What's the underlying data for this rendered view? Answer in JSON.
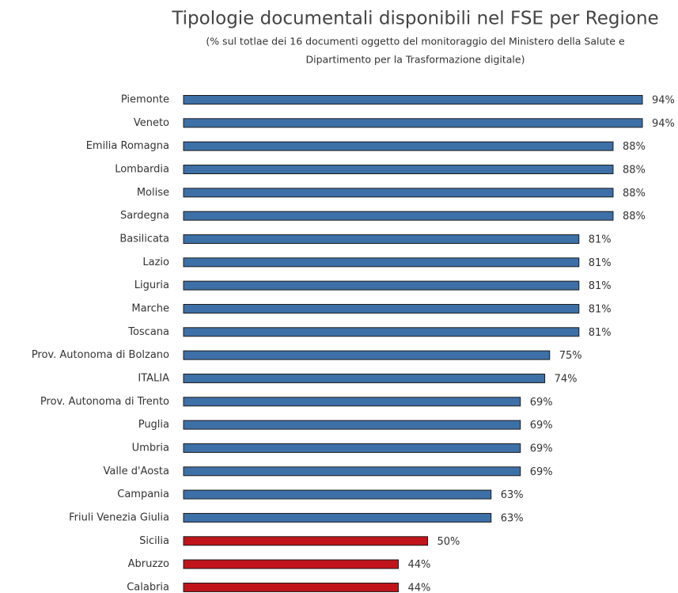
{
  "chart_data": {
    "type": "bar",
    "orientation": "horizontal",
    "title": "Tipologie documentali disponibili nel FSE per Regione",
    "subtitle": [
      "(% sul totlae dei 16 documenti oggetto del monitoraggio del Ministero della Salute e",
      "Dipartimento per la Trasformazione digitale)"
    ],
    "categories": [
      "Piemonte",
      "Veneto",
      "Emilia Romagna",
      "Lombardia",
      "Molise",
      "Sardegna",
      "Basilicata",
      "Lazio",
      "Liguria",
      "Marche",
      "Toscana",
      "Prov. Autonoma di Bolzano",
      "ITALIA",
      "Prov. Autonoma di Trento",
      "Puglia",
      "Umbria",
      "Valle d'Aosta",
      "Campania",
      "Friuli Venezia Giulia",
      "Sicilia",
      "Abruzzo",
      "Calabria"
    ],
    "values": [
      94,
      94,
      88,
      88,
      88,
      88,
      81,
      81,
      81,
      81,
      81,
      75,
      74,
      69,
      69,
      69,
      69,
      63,
      63,
      50,
      44,
      44
    ],
    "value_labels": [
      "94%",
      "94%",
      "88%",
      "88%",
      "88%",
      "88%",
      "81%",
      "81%",
      "81%",
      "81%",
      "81%",
      "75%",
      "74%",
      "69%",
      "69%",
      "69%",
      "69%",
      "63%",
      "63%",
      "50%",
      "44%",
      "44%"
    ],
    "colors": [
      "#3e70a8",
      "#3e70a8",
      "#3e70a8",
      "#3e70a8",
      "#3e70a8",
      "#3e70a8",
      "#3e70a8",
      "#3e70a8",
      "#3e70a8",
      "#3e70a8",
      "#3e70a8",
      "#3e70a8",
      "#3e70a8",
      "#3e70a8",
      "#3e70a8",
      "#3e70a8",
      "#3e70a8",
      "#3e70a8",
      "#3e70a8",
      "#c0141a",
      "#c0141a",
      "#c0141a"
    ],
    "xlim": [
      0,
      100
    ]
  }
}
